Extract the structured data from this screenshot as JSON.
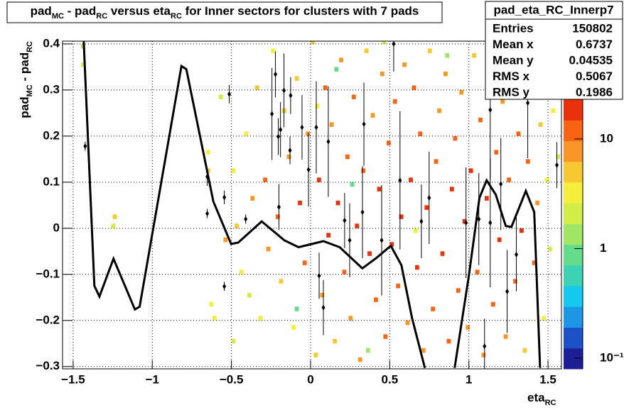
{
  "chart_data": {
    "type": "histogram2d",
    "title": [
      "pad",
      "MC",
      " - pad",
      "RC",
      " versus eta",
      "RC",
      " for Inner sectors for clusters with 7 pads"
    ],
    "x_label": [
      "eta",
      "RC"
    ],
    "y_label": [
      "pad",
      "MC",
      " - pad",
      "RC"
    ],
    "xlim": [
      -1.567,
      1.585
    ],
    "ylim": [
      -0.305,
      0.406
    ],
    "zlim": [
      0.08,
      23
    ],
    "zlog": true,
    "grid": true,
    "xticks": [
      {
        "value": -1.5,
        "label": "−1.5"
      },
      {
        "value": -1,
        "label": "−1"
      },
      {
        "value": -0.5,
        "label": "−0.5"
      },
      0,
      0.5,
      1,
      1.5
    ],
    "yticks": [
      {
        "value": -0.3,
        "label": "−0.3"
      },
      {
        "value": -0.2,
        "label": "−0.2"
      },
      {
        "value": -0.1,
        "label": "−0.1"
      },
      0,
      0.1,
      0.2,
      0.3,
      0.4
    ],
    "zticks": [
      {
        "value": 0.1,
        "label": "10⁻¹"
      },
      1,
      10
    ],
    "palette": [
      "#1e1e96",
      "#1e50c8",
      "#1e96e6",
      "#14c8f0",
      "#3cd2b4",
      "#64dc8c",
      "#a0e664",
      "#d2ee46",
      "#f5ef3c",
      "#f8c832",
      "#f89628",
      "#f86414",
      "#e8320c"
    ],
    "bin_width": [
      0.026,
      0.01
    ],
    "cells": [
      [
        -1.45,
        0.35,
        2
      ],
      [
        -1.45,
        0.39,
        1.5
      ],
      [
        -1.25,
        0.02,
        5
      ],
      [
        -1.26,
        0,
        2
      ],
      [
        -0.66,
        0.16,
        3
      ],
      [
        -0.66,
        0.12,
        5
      ],
      [
        -0.64,
        -0.17,
        4
      ],
      [
        -0.62,
        -0.2,
        3
      ],
      [
        -0.58,
        0.28,
        2
      ],
      [
        -0.55,
        -0.03,
        8
      ],
      [
        -0.5,
        0.12,
        3
      ],
      [
        -0.5,
        -0.25,
        2
      ],
      [
        -0.48,
        0,
        6
      ],
      [
        -0.45,
        -0.1,
        4
      ],
      [
        -0.42,
        0.2,
        3
      ],
      [
        -0.4,
        -0.15,
        2
      ],
      [
        -0.38,
        0.06,
        7
      ],
      [
        -0.35,
        0.3,
        5
      ],
      [
        -0.33,
        -0.2,
        3
      ],
      [
        -0.3,
        0.1,
        10
      ],
      [
        -0.28,
        -0.05,
        8
      ],
      [
        -0.25,
        0.38,
        4
      ],
      [
        -0.22,
        0.02,
        12
      ],
      [
        -0.2,
        -0.12,
        6
      ],
      [
        -0.18,
        0.25,
        5
      ],
      [
        -0.15,
        0.15,
        9
      ],
      [
        -0.12,
        -0.22,
        4
      ],
      [
        -0.1,
        0.32,
        6
      ],
      [
        -0.08,
        0.05,
        15
      ],
      [
        -0.05,
        -0.08,
        10
      ],
      [
        -0.03,
        0.2,
        8
      ],
      [
        0,
        0.4,
        6
      ],
      [
        0.02,
        -0.28,
        5
      ],
      [
        0.04,
        0.1,
        18
      ],
      [
        0.06,
        -0.15,
        9
      ],
      [
        0.08,
        0.3,
        12
      ],
      [
        0.1,
        -0.02,
        20
      ],
      [
        0.12,
        0.22,
        7
      ],
      [
        0.14,
        -0.25,
        6
      ],
      [
        0.16,
        0.05,
        15
      ],
      [
        0.18,
        0.36,
        9
      ],
      [
        0.2,
        -0.1,
        14
      ],
      [
        0.22,
        0.15,
        11
      ],
      [
        0.24,
        -0.2,
        8
      ],
      [
        0.26,
        0.28,
        10
      ],
      [
        0.28,
        0,
        18
      ],
      [
        0.3,
        -0.29,
        7
      ],
      [
        0.32,
        0.12,
        13
      ],
      [
        0.34,
        0.38,
        6
      ],
      [
        0.36,
        -0.06,
        16
      ],
      [
        0.38,
        0.24,
        9
      ],
      [
        0.4,
        -0.16,
        12
      ],
      [
        0.42,
        0.08,
        17
      ],
      [
        0.44,
        0.33,
        8
      ],
      [
        0.46,
        -0.24,
        10
      ],
      [
        0.48,
        0.18,
        14
      ],
      [
        0.5,
        -0.04,
        19
      ],
      [
        0.52,
        0.27,
        11
      ],
      [
        0.54,
        -0.13,
        13
      ],
      [
        0.56,
        0.02,
        20
      ],
      [
        0.58,
        0.35,
        7
      ],
      [
        0.6,
        -0.21,
        9
      ],
      [
        0.62,
        0.1,
        16
      ],
      [
        0.64,
        0.3,
        10
      ],
      [
        0.66,
        -0.09,
        15
      ],
      [
        0.68,
        0.2,
        12
      ],
      [
        0.7,
        -0.27,
        8
      ],
      [
        0.72,
        0.04,
        18
      ],
      [
        0.74,
        0.38,
        6
      ],
      [
        0.76,
        -0.18,
        11
      ],
      [
        0.78,
        0.14,
        14
      ],
      [
        0.8,
        0.25,
        9
      ],
      [
        0.82,
        -0.06,
        17
      ],
      [
        0.84,
        0.33,
        7
      ],
      [
        0.86,
        -0.25,
        10
      ],
      [
        0.88,
        0.08,
        15
      ],
      [
        0.9,
        0.19,
        12
      ],
      [
        0.92,
        -0.14,
        13
      ],
      [
        0.94,
        0.29,
        8
      ],
      [
        0.96,
        0.01,
        19
      ],
      [
        0.98,
        -0.22,
        9
      ],
      [
        1.0,
        0.12,
        16
      ],
      [
        1.02,
        0.37,
        5
      ],
      [
        1.04,
        -0.1,
        14
      ],
      [
        1.06,
        0.23,
        10
      ],
      [
        1.08,
        -0.28,
        7
      ],
      [
        1.1,
        0.06,
        17
      ],
      [
        1.12,
        0.31,
        8
      ],
      [
        1.14,
        -0.17,
        11
      ],
      [
        1.16,
        0.16,
        13
      ],
      [
        1.18,
        -0.03,
        18
      ],
      [
        1.2,
        0.27,
        9
      ],
      [
        1.22,
        -0.24,
        8
      ],
      [
        1.24,
        0.1,
        14
      ],
      [
        1.26,
        0.35,
        6
      ],
      [
        1.28,
        -0.12,
        12
      ],
      [
        1.3,
        0.2,
        10
      ],
      [
        1.32,
        -0.01,
        16
      ],
      [
        1.34,
        -0.27,
        6
      ],
      [
        1.36,
        0.14,
        11
      ],
      [
        1.38,
        0.3,
        7
      ],
      [
        1.4,
        -0.08,
        10
      ],
      [
        1.42,
        0.05,
        8
      ],
      [
        1.44,
        0.22,
        5
      ],
      [
        1.46,
        -0.2,
        4
      ],
      [
        1.48,
        0.1,
        3
      ],
      [
        1.5,
        -0.05,
        2
      ],
      [
        1.52,
        0.25,
        3
      ],
      [
        1.55,
        0.15,
        2
      ],
      [
        0.03,
        0.26,
        3
      ],
      [
        0.15,
        0.34,
        1
      ],
      [
        0.35,
        -0.27,
        1.5
      ],
      [
        0.45,
        0.4,
        2
      ],
      [
        0.65,
        -0.01,
        4
      ],
      [
        -0.1,
        -0.18,
        1
      ],
      [
        0.25,
        0.09,
        0.8
      ],
      [
        0.85,
        0.37,
        1.2
      ]
    ],
    "profile": {
      "x": [
        -1.424,
        -0.653,
        -0.653,
        -0.545,
        -0.545,
        -0.514,
        -0.41,
        -0.244,
        -0.222,
        -0.204,
        -0.19,
        -0.2,
        -0.168,
        -0.13,
        -0.126,
        -0.054,
        -0.013,
        0.036,
        0.054,
        0.081,
        0.112,
        0.215,
        0.247,
        0.328,
        0.337,
        0.449,
        0.525,
        0.565,
        0.7,
        0.749,
        0.982,
        1.063,
        1.099,
        1.135,
        1.135,
        1.202,
        1.242,
        1.3,
        1.372,
        1.556
      ],
      "values": [
        0.178,
        0.112,
        0.032,
        0.067,
        -0.126,
        0.291,
        0.02,
        0.248,
        0.334,
        0.199,
        0.214,
        0.046,
        0.299,
        0.169,
        0.288,
        0.219,
        0.127,
        0.219,
        -0.103,
        -0.172,
        0.188,
        0.017,
        -0.026,
        0.035,
        0.226,
        -0.026,
        0.4,
        0.104,
        0.015,
        0.066,
        0.012,
        0.02,
        -0.256,
        0.012,
        0.257,
        0.096,
        -0.137,
        -0.057,
        0.272,
        0.137
      ],
      "errors": [
        0.01,
        0.02,
        0.01,
        0.015,
        0.01,
        0.02,
        0.01,
        0.1,
        0.05,
        0.04,
        0.06,
        0.05,
        0.08,
        0.03,
        0.04,
        0.07,
        0.08,
        0.1,
        0.05,
        0.06,
        0.12,
        0.06,
        0.08,
        0.1,
        0.09,
        0.12,
        0.06,
        0.15,
        0.08,
        0.1,
        0.12,
        0.1,
        0.06,
        0.14,
        0.15,
        0.1,
        0.09,
        0.08,
        0.12,
        0.05
      ]
    },
    "fit": {
      "x": [
        -1.433,
        -1.366,
        -1.334,
        -1.245,
        -1.11,
        -1.08,
        -0.816,
        -0.785,
        -0.614,
        -0.502,
        -0.457,
        -0.309,
        -0.166,
        -0.076,
        0.081,
        0.184,
        0.327,
        0.417,
        0.507,
        0.574,
        0.641,
        0.722,
        0.8,
        0.91,
        1.0,
        1.067,
        1.112,
        1.17,
        1.233,
        1.269,
        1.36,
        1.413,
        1.45
      ],
      "values": [
        0.406,
        -0.125,
        -0.148,
        -0.066,
        -0.176,
        -0.17,
        0.352,
        0.345,
        0.058,
        -0.034,
        -0.031,
        0.015,
        -0.026,
        -0.041,
        -0.028,
        -0.041,
        -0.087,
        -0.064,
        -0.038,
        -0.08,
        -0.195,
        -0.303,
        null,
        -0.303,
        -0.103,
        0.066,
        0.104,
        0.073,
        0.005,
        0.003,
        0.081,
        0.035,
        -0.303
      ]
    },
    "stats": {
      "name": "pad_eta_RC_Innerp7",
      "rows": [
        [
          "Entries",
          150802
        ],
        [
          "Mean x",
          0.6737
        ],
        [
          "Mean y",
          0.04535
        ],
        [
          "RMS x",
          0.5067
        ],
        [
          "RMS y",
          0.1986
        ]
      ]
    }
  }
}
